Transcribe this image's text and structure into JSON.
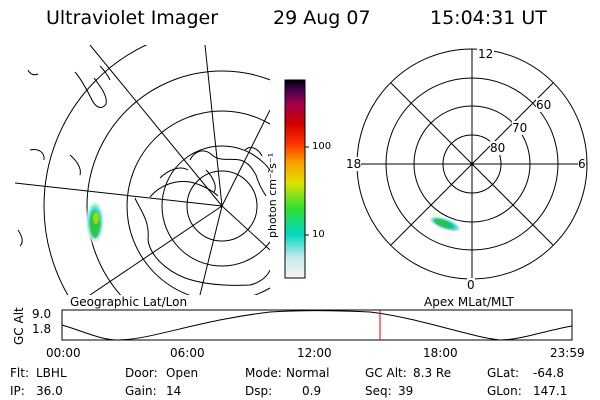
{
  "header": {
    "title": "Ultraviolet Imager",
    "date": "29 Aug 07",
    "time": "15:04:31 UT"
  },
  "geo_panel": {
    "label": "Geographic Lat/Lon"
  },
  "polar_panel": {
    "label": "Apex MLat/MLT",
    "mlt_labels": {
      "top": "12",
      "left": "18",
      "right": "6",
      "bottom": "0"
    },
    "lat_labels": [
      "60",
      "70",
      "80"
    ]
  },
  "colorbar": {
    "unit_label": "photon cm⁻²s⁻¹",
    "ticks": [
      "100",
      "10"
    ]
  },
  "orbit_plot": {
    "ylabel": "GC Alt",
    "y_ticks": [
      "9.0",
      "1.8"
    ],
    "x_ticks": [
      "00:00",
      "06:00",
      "12:00",
      "18:00",
      "23:59"
    ],
    "marker_color": "#e00000"
  },
  "info": {
    "row1": [
      {
        "label": "Flt:",
        "value": "LBHL"
      },
      {
        "label": "Door:",
        "value": "Open"
      },
      {
        "label": "Mode:",
        "value": "Normal"
      },
      {
        "label": "GC Alt:",
        "value": "8.3 Re"
      },
      {
        "label": "GLat:",
        "value": "-64.8"
      }
    ],
    "row2": [
      {
        "label": "IP:",
        "value": "36.0"
      },
      {
        "label": "Gain:",
        "value": "14"
      },
      {
        "label": "Dsp:",
        "value": "0.9"
      },
      {
        "label": "Seq:",
        "value": "39"
      },
      {
        "label": "GLon:",
        "value": "147.1"
      }
    ]
  },
  "colors": {
    "colorbar_stops": [
      "#f4f4f4",
      "#c8ecec",
      "#00d8c0",
      "#30e030",
      "#e0e000",
      "#ffa000",
      "#ff3000",
      "#d00000",
      "#a00050",
      "#400050",
      "#000000"
    ]
  }
}
